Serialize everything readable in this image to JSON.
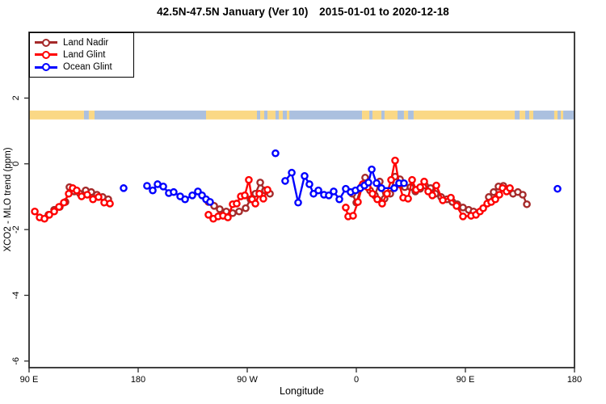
{
  "title": "42.5N-47.5N January (Ver 10)  2015-01-01 to 2020-12-18",
  "axes": {
    "x_label": "Longitude",
    "y_label": "XCO2 - MLO trend (ppm)"
  },
  "legend": {
    "items": [
      {
        "label": "Land Nadir",
        "color": "#A52A2A"
      },
      {
        "label": "Land Glint",
        "color": "#FF0000"
      },
      {
        "label": "Ocean Glint",
        "color": "#0000FF"
      }
    ]
  },
  "colors": {
    "land_nadir": "#A52A2A",
    "land_glint": "#FF0000",
    "ocean_glint": "#0000FF",
    "map_land": "#FAD885",
    "map_ocean": "#ABC0DF",
    "axis": "#2b2b2b"
  },
  "chart_data": {
    "type": "scatter",
    "title": "42.5N-47.5N January (Ver 10)  2015-01-01 to 2020-12-18",
    "xlabel": "Longitude",
    "ylabel": "XCO2 - MLO trend (ppm)",
    "grid": false,
    "legend_position": "top-left",
    "x_axis_note": "longitude axis starting at 90E and wrapping east 450 degrees; deg = degrees east of 90E",
    "xlim_deg": [
      0,
      450
    ],
    "ylim": [
      -6.2,
      4.0
    ],
    "x_ticks": [
      {
        "deg": 0,
        "label": "90 E"
      },
      {
        "deg": 90,
        "label": "180"
      },
      {
        "deg": 180,
        "label": "90 W"
      },
      {
        "deg": 270,
        "label": "0"
      },
      {
        "deg": 360,
        "label": "90 E"
      },
      {
        "deg": 450,
        "label": "180"
      }
    ],
    "y_ticks": [
      {
        "value": 2,
        "label": "2"
      },
      {
        "value": 0,
        "label": "0"
      },
      {
        "value": -2,
        "label": "-2"
      },
      {
        "value": -4,
        "label": "-4"
      },
      {
        "value": -6,
        "label": "-6"
      }
    ],
    "map_strip": {
      "description": "land/ocean band along the 42.5N-47.5N latitude zone",
      "value_top": 1.62,
      "value_bottom": 1.35,
      "segments": [
        {
          "t": "land",
          "a": 0,
          "b": 45.3
        },
        {
          "t": "ocean",
          "a": 45.3,
          "b": 49.3
        },
        {
          "t": "land",
          "a": 49.3,
          "b": 54
        },
        {
          "t": "ocean",
          "a": 54,
          "b": 146
        },
        {
          "t": "land",
          "a": 146,
          "b": 188
        },
        {
          "t": "ocean",
          "a": 188,
          "b": 190.7
        },
        {
          "t": "land",
          "a": 190.7,
          "b": 194
        },
        {
          "t": "ocean",
          "a": 194,
          "b": 196.7
        },
        {
          "t": "land",
          "a": 196.7,
          "b": 203.3
        },
        {
          "t": "ocean",
          "a": 203.3,
          "b": 206
        },
        {
          "t": "land",
          "a": 206,
          "b": 209.3
        },
        {
          "t": "ocean",
          "a": 209.3,
          "b": 212.7
        },
        {
          "t": "land",
          "a": 212.7,
          "b": 214.7
        },
        {
          "t": "ocean",
          "a": 214.7,
          "b": 274.7
        },
        {
          "t": "land",
          "a": 274.7,
          "b": 280.7
        },
        {
          "t": "ocean",
          "a": 280.7,
          "b": 283.3
        },
        {
          "t": "land",
          "a": 283.3,
          "b": 290.7
        },
        {
          "t": "ocean",
          "a": 290.7,
          "b": 293.3
        },
        {
          "t": "land",
          "a": 293.3,
          "b": 304
        },
        {
          "t": "ocean",
          "a": 304,
          "b": 309.3
        },
        {
          "t": "land",
          "a": 309.3,
          "b": 312.7
        },
        {
          "t": "ocean",
          "a": 312.7,
          "b": 317.3
        },
        {
          "t": "land",
          "a": 317.3,
          "b": 400.7
        },
        {
          "t": "ocean",
          "a": 400.7,
          "b": 404.7
        },
        {
          "t": "land",
          "a": 404.7,
          "b": 409.3
        },
        {
          "t": "ocean",
          "a": 409.3,
          "b": 412.7
        },
        {
          "t": "land",
          "a": 412.7,
          "b": 416
        },
        {
          "t": "ocean",
          "a": 416,
          "b": 433.3
        },
        {
          "t": "land",
          "a": 433.3,
          "b": 436
        },
        {
          "t": "ocean",
          "a": 436,
          "b": 438.7
        },
        {
          "t": "land",
          "a": 438.7,
          "b": 440.7
        },
        {
          "t": "ocean",
          "a": 440.7,
          "b": 450
        }
      ]
    },
    "series": [
      {
        "name": "Land Nadir",
        "color": "#A52A2A",
        "segments": [
          [
            [
              16.0,
              -1.55
            ],
            [
              20.7,
              -1.4
            ],
            [
              25.3,
              -1.31
            ],
            [
              30.0,
              -1.16
            ],
            [
              33.3,
              -0.71
            ],
            [
              37.3,
              -0.84
            ],
            [
              42.0,
              -0.91
            ],
            [
              46.7,
              -0.81
            ],
            [
              51.3,
              -0.86
            ],
            [
              56.0,
              -0.94
            ],
            [
              60.7,
              -1.01
            ],
            [
              65.3,
              -1.08
            ]
          ],
          [
            [
              148.0,
              -1.16
            ],
            [
              152.7,
              -1.28
            ],
            [
              157.3,
              -1.38
            ],
            [
              162.7,
              -1.45
            ],
            [
              168.0,
              -1.5
            ],
            [
              173.3,
              -1.45
            ],
            [
              178.7,
              -1.35
            ],
            [
              182.7,
              -1.08
            ],
            [
              186.7,
              -0.91
            ],
            [
              190.7,
              -0.57
            ],
            [
              194.7,
              -0.81
            ],
            [
              198.7,
              -0.91
            ]
          ],
          [
            [
              266.7,
              -0.91
            ],
            [
              270.0,
              -1.18
            ],
            [
              274.0,
              -0.71
            ],
            [
              277.3,
              -0.42
            ],
            [
              281.3,
              -0.81
            ],
            [
              285.3,
              -0.96
            ],
            [
              289.3,
              -0.54
            ],
            [
              293.3,
              -1.06
            ],
            [
              298.0,
              -0.91
            ],
            [
              302.0,
              -0.39
            ],
            [
              306.0,
              -0.47
            ],
            [
              310.0,
              -0.71
            ],
            [
              314.7,
              -0.71
            ],
            [
              318.7,
              -0.84
            ],
            [
              322.7,
              -0.76
            ],
            [
              326.7,
              -0.66
            ],
            [
              331.3,
              -0.74
            ],
            [
              335.3,
              -0.91
            ],
            [
              340.0,
              -1.01
            ],
            [
              344.7,
              -1.08
            ],
            [
              349.3,
              -1.16
            ],
            [
              353.3,
              -1.23
            ],
            [
              358.0,
              -1.33
            ],
            [
              362.7,
              -1.4
            ],
            [
              366.7,
              -1.45
            ]
          ],
          [
            [
              379.3,
              -1.01
            ],
            [
              383.3,
              -0.86
            ],
            [
              387.3,
              -0.69
            ],
            [
              391.3,
              -0.67
            ],
            [
              395.3,
              -0.81
            ],
            [
              399.3,
              -0.91
            ],
            [
              403.3,
              -0.86
            ],
            [
              407.3,
              -0.94
            ],
            [
              410.7,
              -1.23
            ]
          ]
        ]
      },
      {
        "name": "Land Glint",
        "color": "#FF0000",
        "segments": [
          [
            [
              4.7,
              -1.45
            ],
            [
              8.7,
              -1.63
            ],
            [
              12.7,
              -1.67
            ],
            [
              16.7,
              -1.55
            ],
            [
              20.7,
              -1.45
            ],
            [
              24.7,
              -1.31
            ],
            [
              28.7,
              -1.18
            ],
            [
              32.7,
              -0.91
            ],
            [
              36.0,
              -0.74
            ],
            [
              39.3,
              -0.81
            ],
            [
              43.3,
              -0.99
            ],
            [
              48.0,
              -0.94
            ],
            [
              52.7,
              -1.08
            ],
            [
              57.3,
              -1.01
            ],
            [
              62.0,
              -1.18
            ],
            [
              66.7,
              -1.21
            ]
          ],
          [
            [
              148.0,
              -1.55
            ],
            [
              152.0,
              -1.67
            ],
            [
              156.0,
              -1.6
            ],
            [
              160.0,
              -1.58
            ],
            [
              164.0,
              -1.63
            ],
            [
              168.0,
              -1.23
            ],
            [
              171.3,
              -1.21
            ],
            [
              174.7,
              -0.99
            ],
            [
              178.0,
              -0.96
            ],
            [
              181.3,
              -0.49
            ],
            [
              184.0,
              -1.08
            ],
            [
              186.7,
              -1.21
            ],
            [
              190.0,
              -0.91
            ],
            [
              193.3,
              -1.06
            ],
            [
              196.7,
              -0.79
            ]
          ],
          [
            [
              261.3,
              -1.33
            ],
            [
              263.3,
              -1.6
            ],
            [
              267.3,
              -1.58
            ],
            [
              271.3,
              -1.16
            ],
            [
              275.3,
              -0.62
            ],
            [
              279.3,
              -0.71
            ],
            [
              283.3,
              -0.91
            ],
            [
              287.3,
              -1.08
            ],
            [
              291.3,
              -1.21
            ],
            [
              295.3,
              -0.91
            ],
            [
              298.7,
              -0.49
            ],
            [
              302.0,
              0.1
            ],
            [
              305.3,
              -0.62
            ],
            [
              308.7,
              -1.03
            ],
            [
              312.7,
              -1.06
            ],
            [
              316.0,
              -0.49
            ],
            [
              319.3,
              -0.79
            ],
            [
              322.7,
              -0.71
            ],
            [
              326.0,
              -0.54
            ],
            [
              329.3,
              -0.84
            ],
            [
              332.7,
              -0.96
            ],
            [
              336.0,
              -0.66
            ],
            [
              341.3,
              -1.11
            ],
            [
              348.0,
              -1.03
            ],
            [
              352.7,
              -1.28
            ],
            [
              358.0,
              -1.6
            ],
            [
              364.7,
              -1.58
            ],
            [
              368.7,
              -1.55
            ],
            [
              372.0,
              -1.45
            ],
            [
              374.7,
              -1.35
            ],
            [
              378.0,
              -1.21
            ],
            [
              381.3,
              -1.16
            ],
            [
              384.7,
              -1.08
            ],
            [
              388.0,
              -0.94
            ],
            [
              390.7,
              -0.74
            ],
            [
              394.0,
              -0.84
            ],
            [
              396.7,
              -0.74
            ]
          ]
        ]
      },
      {
        "name": "Ocean Glint",
        "color": "#0000FF",
        "segments": [
          [
            [
              78.0,
              -0.74
            ]
          ],
          [
            [
              97.3,
              -0.67
            ],
            [
              102.0,
              -0.81
            ],
            [
              106.0,
              -0.62
            ],
            [
              110.7,
              -0.69
            ],
            [
              115.3,
              -0.89
            ],
            [
              119.3,
              -0.86
            ],
            [
              124.7,
              -0.99
            ],
            [
              128.7,
              -1.08
            ],
            [
              134.7,
              -0.96
            ],
            [
              139.3,
              -0.84
            ],
            [
              142.7,
              -0.96
            ],
            [
              146.0,
              -1.08
            ],
            [
              149.3,
              -1.16
            ]
          ],
          [
            [
              203.3,
              0.32
            ]
          ],
          [
            [
              211.3,
              -0.52
            ],
            [
              216.7,
              -0.27
            ],
            [
              222.0,
              -1.18
            ],
            [
              227.3,
              -0.37
            ],
            [
              231.3,
              -0.62
            ],
            [
              234.7,
              -0.91
            ],
            [
              238.7,
              -0.81
            ],
            [
              243.3,
              -0.94
            ],
            [
              247.3,
              -0.96
            ],
            [
              251.3,
              -0.84
            ],
            [
              256.0,
              -1.08
            ],
            [
              261.3,
              -0.76
            ],
            [
              265.3,
              -0.86
            ],
            [
              269.3,
              -0.81
            ],
            [
              273.3,
              -0.74
            ],
            [
              276.7,
              -0.66
            ],
            [
              280.0,
              -0.57
            ],
            [
              282.7,
              -0.17
            ],
            [
              286.7,
              -0.59
            ],
            [
              290.7,
              -0.74
            ],
            [
              301.3,
              -0.74
            ],
            [
              305.3,
              -0.59
            ],
            [
              309.3,
              -0.59
            ]
          ],
          [
            [
              436.0,
              -0.76
            ]
          ]
        ]
      }
    ]
  }
}
